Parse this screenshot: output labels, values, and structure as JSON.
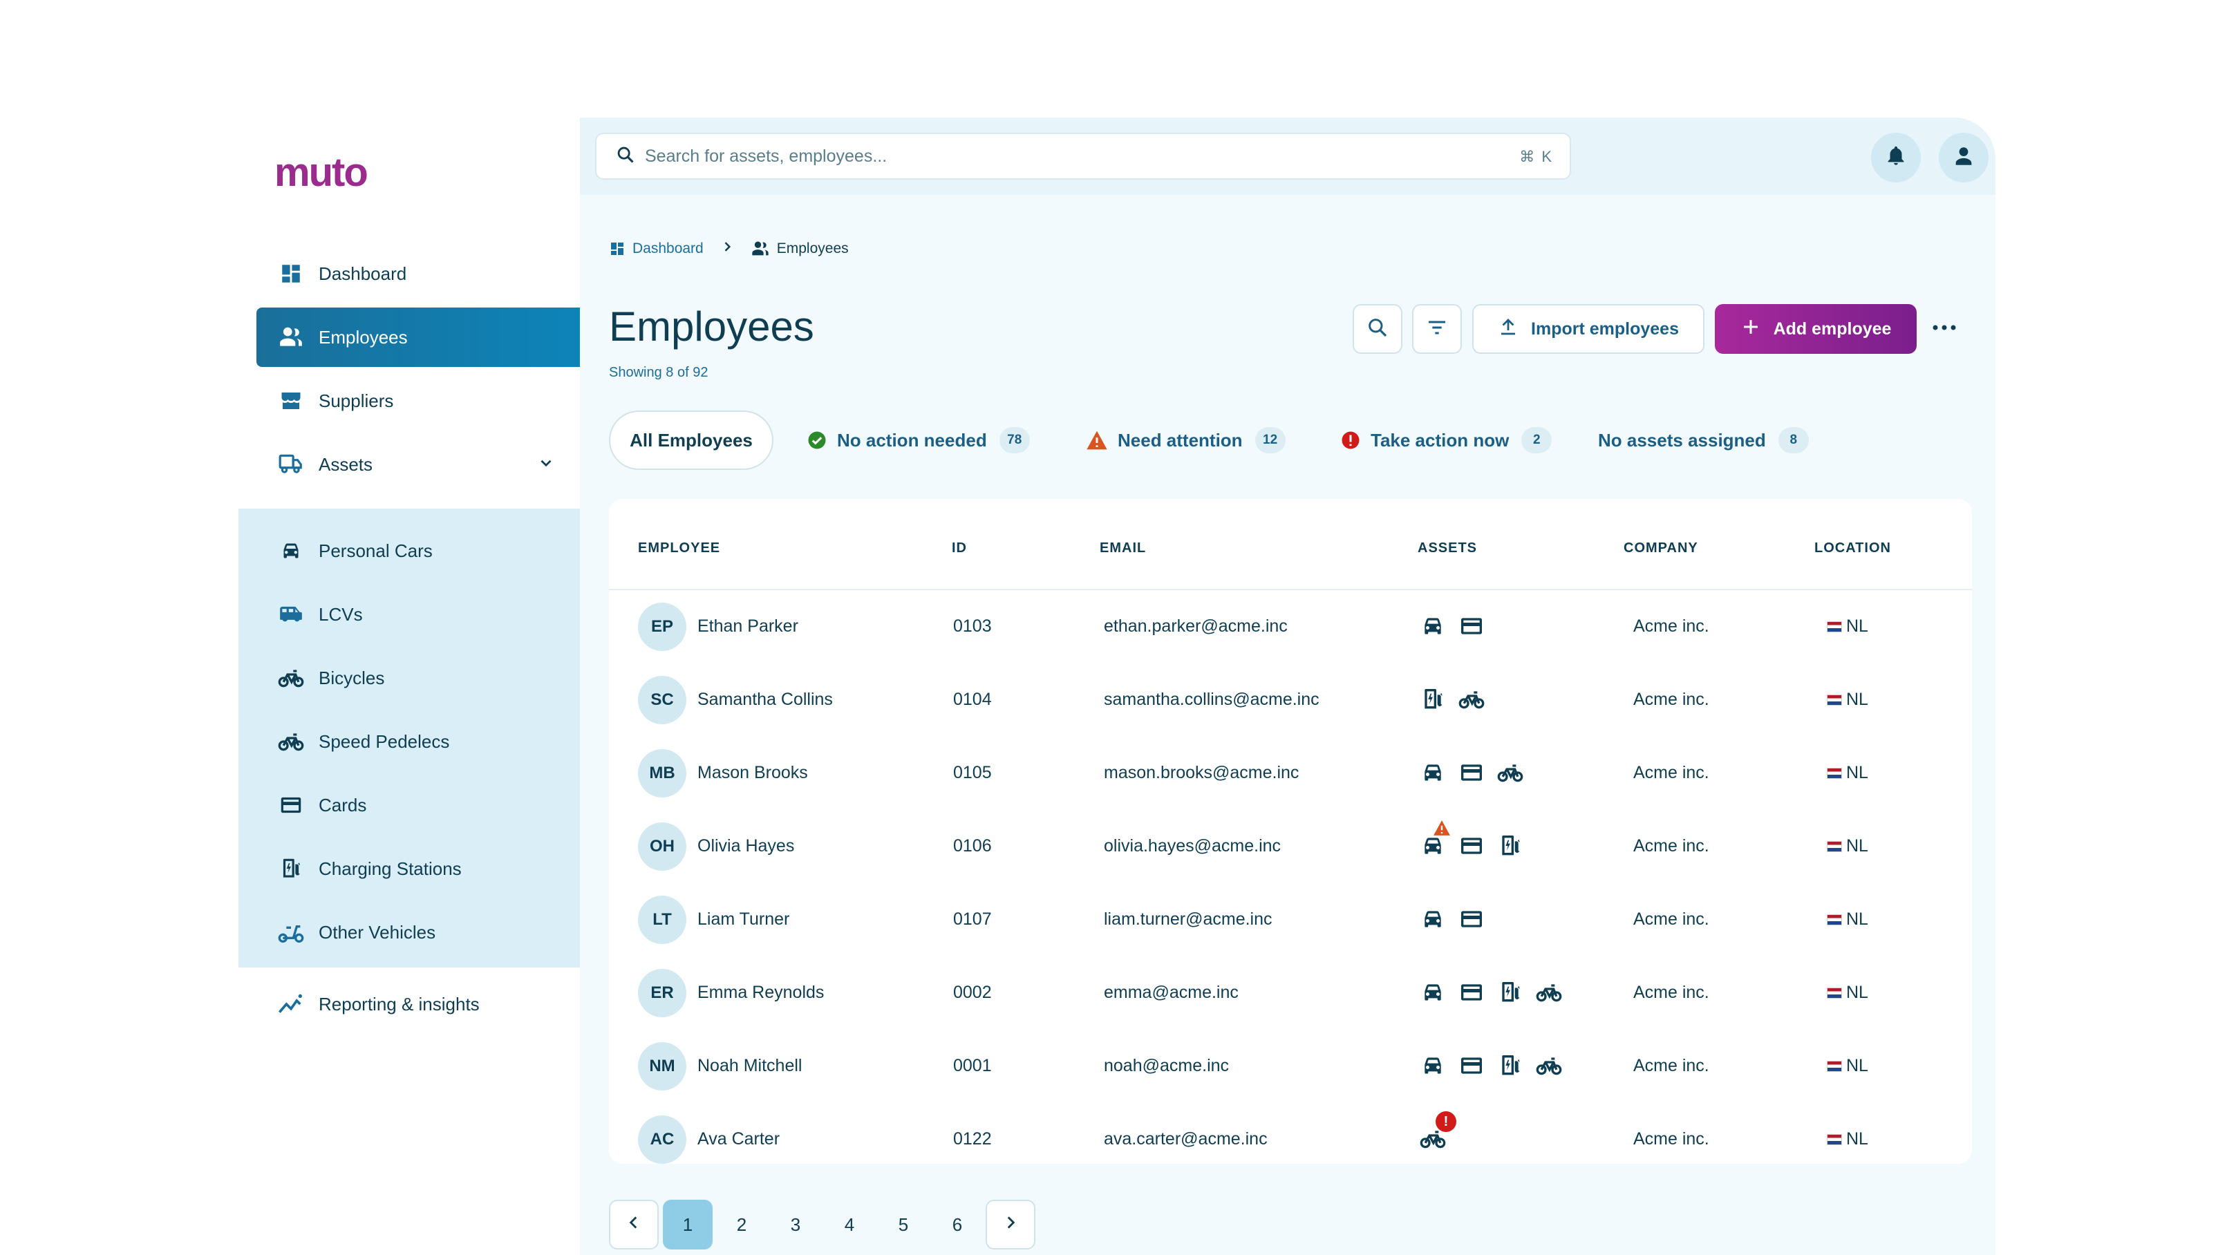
{
  "app": {
    "logo": "muto"
  },
  "sidebar": {
    "items": [
      {
        "label": "Dashboard",
        "icon": "dashboard-icon"
      },
      {
        "label": "Employees",
        "icon": "employees-icon",
        "active": true
      },
      {
        "label": "Suppliers",
        "icon": "suppliers-icon"
      },
      {
        "label": "Assets",
        "icon": "assets-icon",
        "expanded": true
      }
    ],
    "sub_items": [
      {
        "label": "Personal Cars",
        "icon": "car-icon"
      },
      {
        "label": "LCVs",
        "icon": "van-icon"
      },
      {
        "label": "Bicycles",
        "icon": "bicycle-icon"
      },
      {
        "label": "Speed Pedelecs",
        "icon": "pedelec-icon"
      },
      {
        "label": "Cards",
        "icon": "card-icon"
      },
      {
        "label": "Charging Stations",
        "icon": "charging-station-icon"
      },
      {
        "label": "Other Vehicles",
        "icon": "scooter-icon"
      }
    ],
    "reporting": {
      "label": "Reporting & insights",
      "icon": "chart-icon"
    }
  },
  "topbar": {
    "search_placeholder": "Search for assets, employees...",
    "shortcut": "⌘ K"
  },
  "breadcrumb": {
    "home": "Dashboard",
    "current": "Employees"
  },
  "page": {
    "title": "Employees",
    "showing": "Showing 8 of 92"
  },
  "actions": {
    "import": "Import employees",
    "add": "Add employee"
  },
  "filters": [
    {
      "label": "All Employees",
      "active": true
    },
    {
      "label": "No action needed",
      "count": "78",
      "status": "ok"
    },
    {
      "label": "Need attention",
      "count": "12",
      "status": "warning"
    },
    {
      "label": "Take action now",
      "count": "2",
      "status": "error"
    },
    {
      "label": "No assets assigned",
      "count": "8"
    }
  ],
  "table": {
    "headers": [
      "EMPLOYEE",
      "ID",
      "EMAIL",
      "ASSETS",
      "COMPANY",
      "LOCATION"
    ],
    "rows": [
      {
        "initials": "EP",
        "name": "Ethan Parker",
        "id": "0103",
        "email": "ethan.parker@acme.inc",
        "assets": [
          "car",
          "card"
        ],
        "company": "Acme inc.",
        "location": "NL"
      },
      {
        "initials": "SC",
        "name": "Samantha Collins",
        "id": "0104",
        "email": "samantha.collins@acme.inc",
        "assets": [
          "charger",
          "bike"
        ],
        "company": "Acme inc.",
        "location": "NL"
      },
      {
        "initials": "MB",
        "name": "Mason Brooks",
        "id": "0105",
        "email": "mason.brooks@acme.inc",
        "assets": [
          "car",
          "card",
          "bike"
        ],
        "company": "Acme inc.",
        "location": "NL"
      },
      {
        "initials": "OH",
        "name": "Olivia Hayes",
        "id": "0106",
        "email": "olivia.hayes@acme.inc",
        "assets": [
          "car-warning",
          "card",
          "charger"
        ],
        "company": "Acme inc.",
        "location": "NL"
      },
      {
        "initials": "LT",
        "name": "Liam Turner",
        "id": "0107",
        "email": "liam.turner@acme.inc",
        "assets": [
          "car",
          "card"
        ],
        "company": "Acme inc.",
        "location": "NL"
      },
      {
        "initials": "ER",
        "name": "Emma Reynolds",
        "id": "0002",
        "email": "emma@acme.inc",
        "assets": [
          "car",
          "card",
          "charger",
          "bike"
        ],
        "company": "Acme inc.",
        "location": "NL"
      },
      {
        "initials": "NM",
        "name": "Noah Mitchell",
        "id": "0001",
        "email": "noah@acme.inc",
        "assets": [
          "car",
          "card",
          "charger",
          "bike"
        ],
        "company": "Acme inc.",
        "location": "NL"
      },
      {
        "initials": "AC",
        "name": "Ava Carter",
        "id": "0122",
        "email": "ava.carter@acme.inc",
        "assets": [
          "bike-error"
        ],
        "company": "Acme inc.",
        "location": "NL"
      }
    ]
  },
  "pagination": {
    "pages": [
      "1",
      "2",
      "3",
      "4",
      "5",
      "6"
    ],
    "current": "1"
  },
  "colors": {
    "primary": "#1b6e9c",
    "accent": "#9b2c8e",
    "ok": "#2a8a2a",
    "warning": "#d9541e",
    "error": "#d11b1b"
  }
}
